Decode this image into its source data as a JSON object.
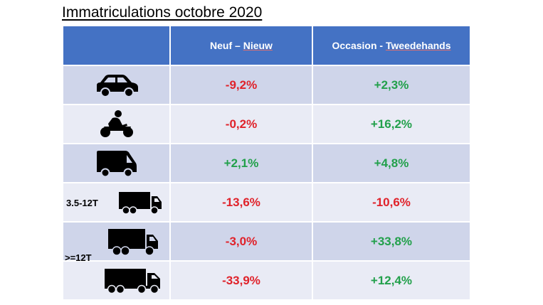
{
  "title": "Immatriculations octobre 2020",
  "colors": {
    "header": "#4472c4",
    "row_odd": "#cfd5ea",
    "row_even": "#e9ebf5",
    "negative": "#e0222a",
    "positive": "#22a04b"
  },
  "header": {
    "col1_a": "Neuf – ",
    "col1_b": "Nieuw",
    "col2_a": "Occasion - ",
    "col2_b": "Tweedehands"
  },
  "labels": {
    "light_truck": "3.5-12T",
    "heavy_truck": ">=12T"
  },
  "chart_data": {
    "type": "table",
    "title": "Immatriculations octobre 2020",
    "columns": [
      "",
      "Neuf – Nieuw",
      "Occasion - Tweedehands"
    ],
    "rows": [
      {
        "icon": "car-icon",
        "label": "",
        "new": "-9,2%",
        "used": "+2,3%"
      },
      {
        "icon": "motorcycle-icon",
        "label": "",
        "new": "-0,2%",
        "used": "+16,2%"
      },
      {
        "icon": "van-icon",
        "label": "",
        "new": "+2,1%",
        "used": "+4,8%"
      },
      {
        "icon": "truck-icon",
        "label": "3.5-12T",
        "new": "-13,6%",
        "used": "-10,6%"
      },
      {
        "icon": "truck-icon",
        "label": ">=12T",
        "new": "-3,0%",
        "used": "+33,8%"
      },
      {
        "icon": "semi-truck-icon",
        "label": ">=12T",
        "new": "-33,9%",
        "used": "+12,4%"
      }
    ]
  }
}
